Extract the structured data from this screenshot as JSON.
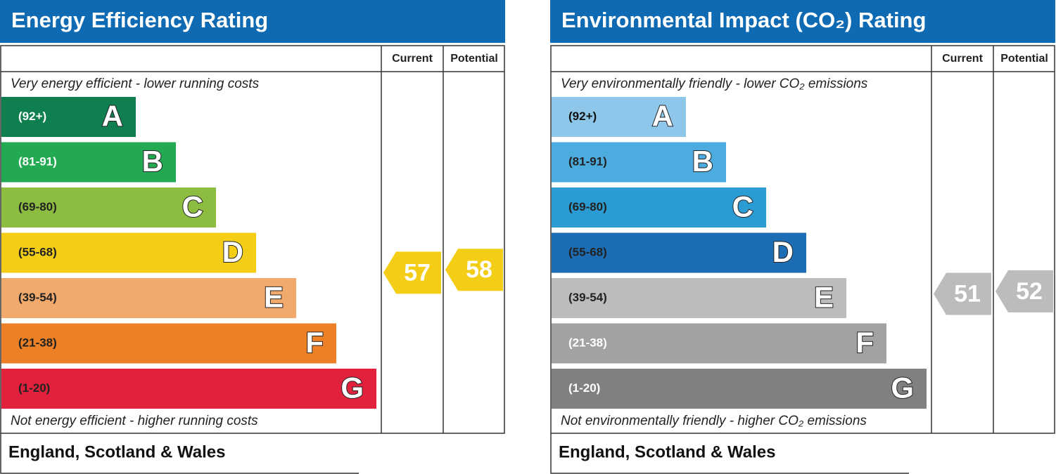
{
  "panels": [
    {
      "title": "Energy Efficiency Rating",
      "headers": [
        "Current",
        "Potential"
      ],
      "top_note": "Very energy efficient - lower running costs",
      "bottom_note": "Not energy efficient - higher running costs",
      "footer": "England, Scotland & Wales",
      "bands": [
        {
          "range": "(92+)",
          "letter": "A",
          "color": "#0f7f4f",
          "text_color": "#ffffff"
        },
        {
          "range": "(81-91)",
          "letter": "B",
          "color": "#22a952",
          "text_color": "#ffffff"
        },
        {
          "range": "(69-80)",
          "letter": "C",
          "color": "#8dbd40",
          "text_color": "#222222"
        },
        {
          "range": "(55-68)",
          "letter": "D",
          "color": "#f4cd17",
          "text_color": "#222222"
        },
        {
          "range": "(39-54)",
          "letter": "E",
          "color": "#f2a96c",
          "text_color": "#222222"
        },
        {
          "range": "(21-38)",
          "letter": "F",
          "color": "#ec8026",
          "text_color": "#222222"
        },
        {
          "range": "(1-20)",
          "letter": "G",
          "color": "#e2213c",
          "text_color": "#222222"
        }
      ],
      "current": 57,
      "potential": 58
    },
    {
      "title": "Environmental Impact (CO₂) Rating",
      "headers": [
        "Current",
        "Potential"
      ],
      "top_note": "Very environmentally friendly - lower CO₂ emissions",
      "bottom_note": "Not environmentally friendly - higher CO₂ emissions",
      "footer": "England, Scotland & Wales",
      "bands": [
        {
          "range": "(92+)",
          "letter": "A",
          "color": "#8fc7ea",
          "text_color": "#111111"
        },
        {
          "range": "(81-91)",
          "letter": "B",
          "color": "#4cabdf",
          "text_color": "#222222"
        },
        {
          "range": "(69-80)",
          "letter": "C",
          "color": "#2b9bd3",
          "text_color": "#222222"
        },
        {
          "range": "(55-68)",
          "letter": "D",
          "color": "#1c6db4",
          "text_color": "#222222"
        },
        {
          "range": "(39-54)",
          "letter": "E",
          "color": "#bcbcbc",
          "text_color": "#222222"
        },
        {
          "range": "(21-38)",
          "letter": "F",
          "color": "#a2a2a2",
          "text_color": "#ffffff"
        },
        {
          "range": "(1-20)",
          "letter": "G",
          "color": "#808080",
          "text_color": "#ffffff"
        }
      ],
      "current": 51,
      "potential": 52
    }
  ]
}
